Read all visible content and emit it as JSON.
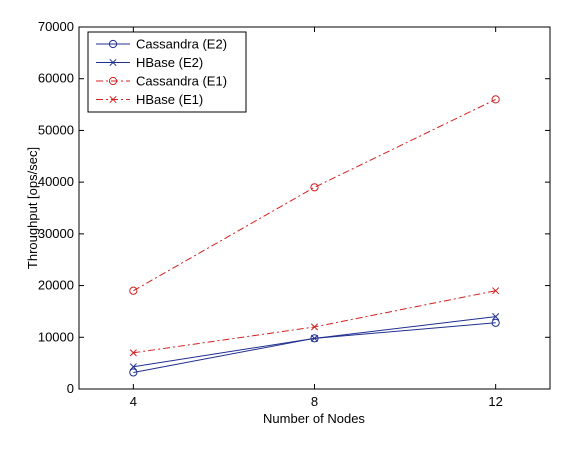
{
  "chart_data": {
    "type": "line",
    "xlabel": "Number of Nodes",
    "ylabel": "Throughput [ops/sec]",
    "x": [
      4,
      8,
      12
    ],
    "xlim": [
      2.8,
      13.2
    ],
    "ylim": [
      0,
      70000
    ],
    "xticks": [
      "4",
      "8",
      "12"
    ],
    "yticks": [
      "0",
      "10000",
      "20000",
      "30000",
      "40000",
      "50000",
      "60000",
      "70000"
    ],
    "grid": false,
    "legend_position": "top-left",
    "series": [
      {
        "name": "Cassandra (E2)",
        "values": [
          3200,
          9800,
          12800
        ],
        "color": "#1f2f8f",
        "marker": "circle",
        "line": "solid"
      },
      {
        "name": "HBase (E2)",
        "values": [
          4300,
          9800,
          14000
        ],
        "color": "#1f2f8f",
        "marker": "x",
        "line": "solid"
      },
      {
        "name": "Cassandra (E1)",
        "values": [
          19000,
          39000,
          56000
        ],
        "color": "#d42020",
        "marker": "circle",
        "line": "dashdot"
      },
      {
        "name": "HBase (E1)",
        "values": [
          7000,
          12000,
          19000
        ],
        "color": "#d42020",
        "marker": "x",
        "line": "dashdot"
      }
    ]
  }
}
